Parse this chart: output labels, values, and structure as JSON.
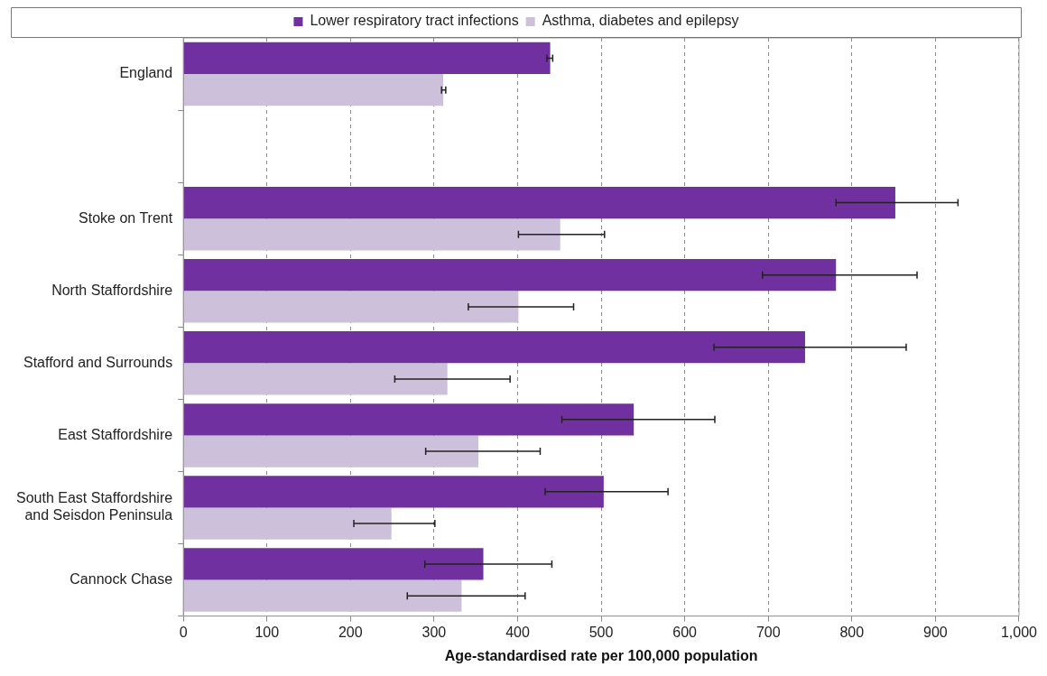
{
  "chart_data": {
    "type": "bar",
    "orientation": "horizontal",
    "categories": [
      "England",
      null,
      "Stoke on Trent",
      "North Staffordshire",
      "Stafford and Surrounds",
      "East Staffordshire",
      "South East Staffordshire and Seisdon Peninsula",
      "Cannock Chase"
    ],
    "series": [
      {
        "name": "Lower respiratory tract infections",
        "color": "#7030a0",
        "values": [
          439,
          null,
          852,
          781,
          744,
          539,
          503,
          359
        ],
        "errors": [
          [
            435,
            442
          ],
          null,
          [
            781,
            927
          ],
          [
            693,
            878
          ],
          [
            635,
            865
          ],
          [
            453,
            636
          ],
          [
            433,
            580
          ],
          [
            289,
            441
          ]
        ]
      },
      {
        "name": "Asthma, diabetes and epilepsy",
        "color": "#ccc0da",
        "values": [
          311,
          null,
          451,
          401,
          316,
          353,
          249,
          333
        ],
        "errors": [
          [
            309,
            314
          ],
          null,
          [
            401,
            504
          ],
          [
            341,
            467
          ],
          [
            253,
            391
          ],
          [
            290,
            427
          ],
          [
            204,
            301
          ],
          [
            268,
            409
          ]
        ]
      }
    ],
    "xlabel": "Age-standardised rate per 100,000 population",
    "xlim": [
      0,
      1000
    ],
    "xticks": [
      0,
      100,
      200,
      300,
      400,
      500,
      600,
      700,
      800,
      900,
      {
        "value": 1000,
        "label": "1,000"
      }
    ],
    "grid": "x",
    "legend": "top"
  }
}
